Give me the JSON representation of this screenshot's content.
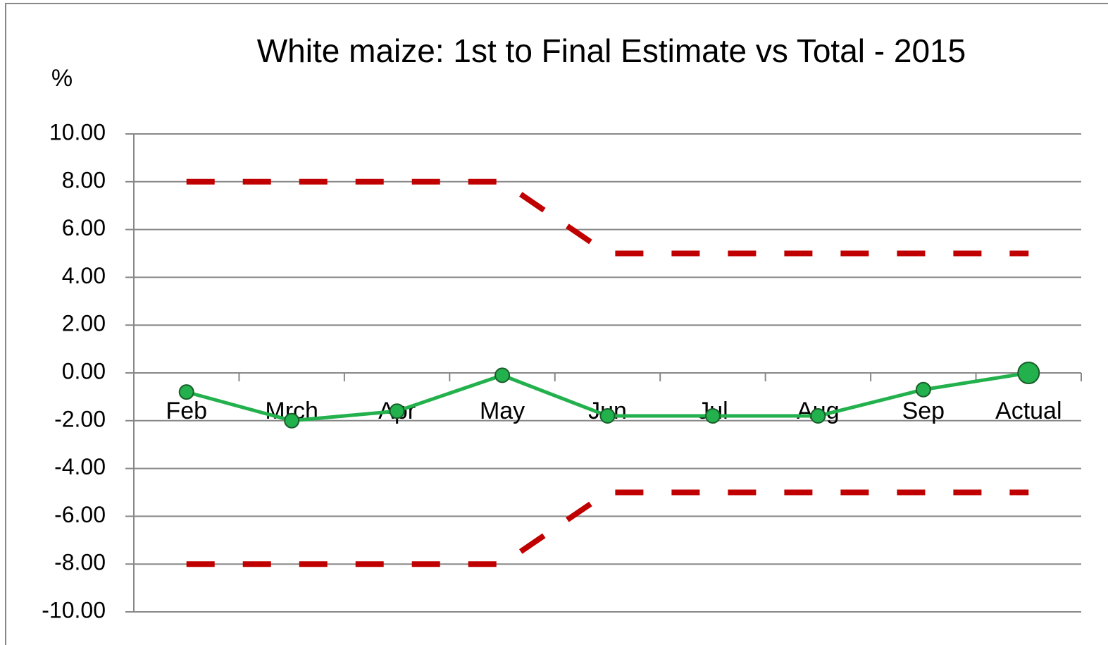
{
  "chart_data": {
    "type": "line",
    "title": "White maize: 1st to Final Estimate vs Total - 2015",
    "ylabel": "%",
    "categories": [
      "Feb",
      "Mrch",
      "Apr",
      "May",
      "Jun",
      "Jul",
      "Aug",
      "Sep",
      "Actual"
    ],
    "series": [
      {
        "color": "#c00000",
        "dashed": true,
        "markers": false,
        "values": [
          8,
          8,
          8,
          8,
          5,
          5,
          5,
          5,
          5
        ]
      },
      {
        "color": "#c00000",
        "dashed": true,
        "markers": false,
        "values": [
          -8,
          -8,
          -8,
          -8,
          -5,
          -5,
          -5,
          -5,
          -5
        ]
      },
      {
        "color": "#22b14c",
        "dashed": false,
        "markers": true,
        "values": [
          -0.8,
          -2.0,
          -1.6,
          -0.1,
          -1.8,
          -1.8,
          -1.8,
          -0.7,
          0
        ]
      }
    ],
    "ylim": [
      -10,
      10
    ],
    "yticks": [
      {
        "value": -10,
        "label": "-10.00"
      },
      {
        "value": -8,
        "label": "-8.00"
      },
      {
        "value": -6,
        "label": "-6.00"
      },
      {
        "value": -4,
        "label": "-4.00"
      },
      {
        "value": -2,
        "label": "-2.00"
      },
      {
        "value": 0,
        "label": "0.00"
      },
      {
        "value": 2,
        "label": "2.00"
      },
      {
        "value": 4,
        "label": "4.00"
      },
      {
        "value": 6,
        "label": "6.00"
      },
      {
        "value": 8,
        "label": "8.00"
      },
      {
        "value": 10,
        "label": "10.00"
      }
    ],
    "grid": true
  }
}
